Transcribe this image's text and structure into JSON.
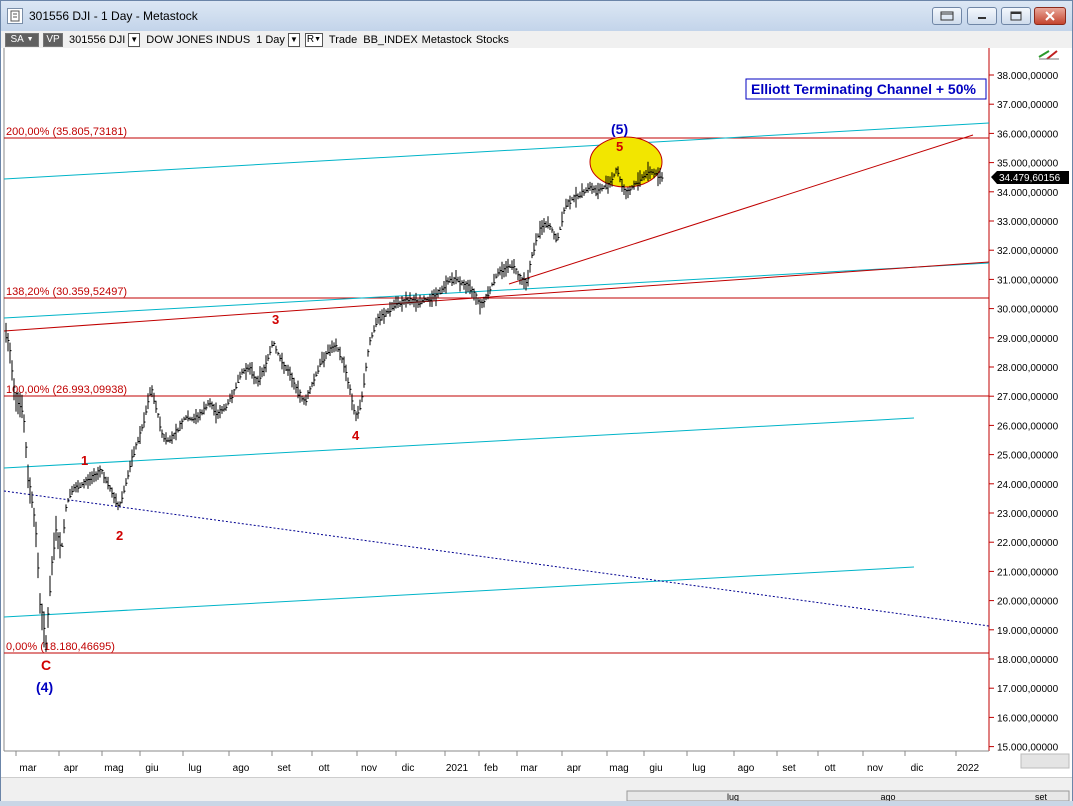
{
  "window": {
    "title": "301556 DJI - 1 Day - Metastock"
  },
  "toolbar": {
    "sa": "SA",
    "vp": "VP",
    "symbol": "301556 DJI",
    "name": "DOW JONES INDUS",
    "period": "1 Day",
    "r_button": "R",
    "mode": "Trade",
    "index": "BB_INDEX",
    "source": "Metastock",
    "type": "Stocks"
  },
  "chart": {
    "title_box": "Elliott Terminating Channel + 50%",
    "last_price": "34.479,60156",
    "y_ticks": [
      "38.000,00000",
      "37.000,00000",
      "36.000,00000",
      "35.000,00000",
      "34.000,00000",
      "33.000,00000",
      "32.000,00000",
      "31.000,00000",
      "30.000,00000",
      "29.000,00000",
      "28.000,00000",
      "27.000,00000",
      "26.000,00000",
      "25.000,00000",
      "24.000,00000",
      "23.000,00000",
      "22.000,00000",
      "21.000,00000",
      "20.000,00000",
      "19.000,00000",
      "18.000,00000",
      "17.000,00000",
      "16.000,00000",
      "15.000,00000"
    ],
    "x_ticks": [
      "mar",
      "apr",
      "mag",
      "giu",
      "lug",
      "ago",
      "set",
      "ott",
      "nov",
      "dic",
      "2021",
      "feb",
      "mar",
      "apr",
      "mag",
      "giu",
      "lug",
      "ago",
      "set",
      "ott",
      "nov",
      "dic",
      "2022"
    ],
    "bottom_ticks": [
      "lug",
      "ago",
      "set"
    ],
    "fib_labels": [
      "200,00% (35.805,73181)",
      "138,20% (30.359,52497)",
      "100,00% (26.993,09938)",
      "0,00% (18.180,46695)"
    ],
    "wave_labels": [
      "(5)",
      "5",
      "3",
      "4",
      "1",
      "2",
      "C",
      "(4)"
    ],
    "colors": {
      "fib": "#c00000",
      "channel": "#00b4c8",
      "price": "#000000",
      "wave_red": "#d00000",
      "wave_blue": "#0000c0",
      "ellipse": "#f2e600"
    }
  }
}
